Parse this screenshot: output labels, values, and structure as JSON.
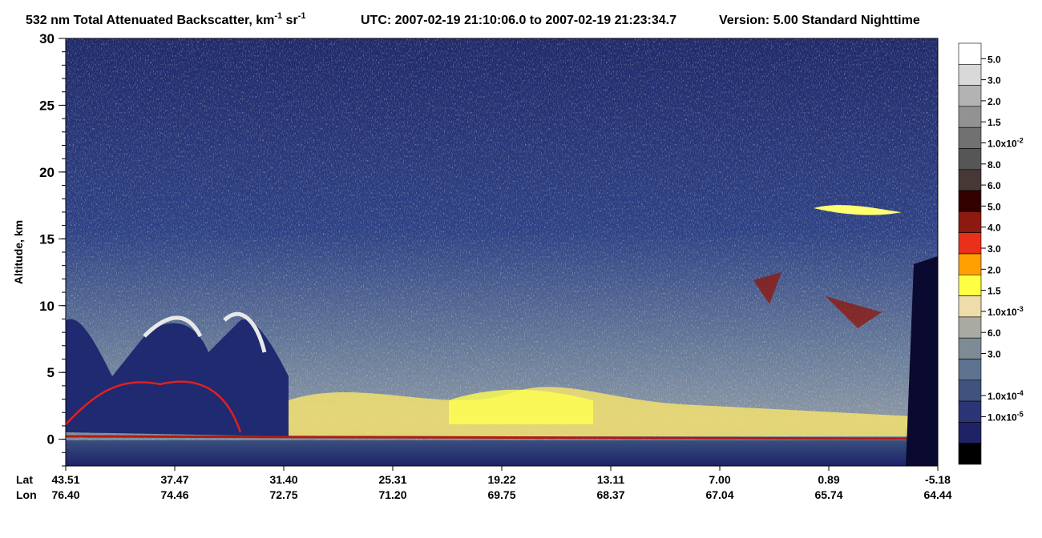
{
  "chart_data": {
    "type": "heatmap",
    "title_parts": [
      "532 nm Total Attenuated Backscatter, km",
      "-1",
      " sr",
      "-1"
    ],
    "utc": "UTC:  2007-02-19 21:10:06.0  to  2007-02-19 21:23:34.7",
    "version": "Version: 5.00  Standard  Nighttime",
    "ylabel": "Altitude, km",
    "ylim": [
      -2,
      30
    ],
    "yticks": [
      0,
      5,
      10,
      15,
      20,
      25,
      30
    ],
    "x_row_labels": [
      "Lat",
      "Lon"
    ],
    "lat": [
      "43.51",
      "37.47",
      "31.40",
      "25.31",
      "19.22",
      "13.11",
      "7.00",
      "0.89",
      "-5.18"
    ],
    "lon": [
      "76.40",
      "74.46",
      "72.75",
      "71.20",
      "69.75",
      "68.37",
      "67.04",
      "65.74",
      "64.44"
    ],
    "colorbar": {
      "colors": [
        "#ffffff",
        "#d9d9d9",
        "#b3b3b3",
        "#929292",
        "#717171",
        "#565656",
        "#463834",
        "#330000",
        "#8c1a10",
        "#e8301a",
        "#ffa000",
        "#ffff44",
        "#eedcaa",
        "#a9aaa2",
        "#7e8b95",
        "#5e7390",
        "#40527e",
        "#2b3575",
        "#1f2366",
        "#000000"
      ],
      "labels": [
        {
          "text": "5.0"
        },
        {
          "text": "3.0"
        },
        {
          "text": "2.0"
        },
        {
          "text": "1.5"
        },
        {
          "text": "1.0x10",
          "sup": "-2"
        },
        {
          "text": "8.0"
        },
        {
          "text": "6.0"
        },
        {
          "text": "5.0"
        },
        {
          "text": "4.0"
        },
        {
          "text": "3.0"
        },
        {
          "text": "2.0"
        },
        {
          "text": "1.5"
        },
        {
          "text": "1.0x10",
          "sup": "-3"
        },
        {
          "text": "6.0"
        },
        {
          "text": "3.0"
        },
        {
          "text": "1.0x10",
          "sup": "-4"
        },
        {
          "text": "1.0x10",
          "sup": "-5"
        }
      ]
    }
  }
}
